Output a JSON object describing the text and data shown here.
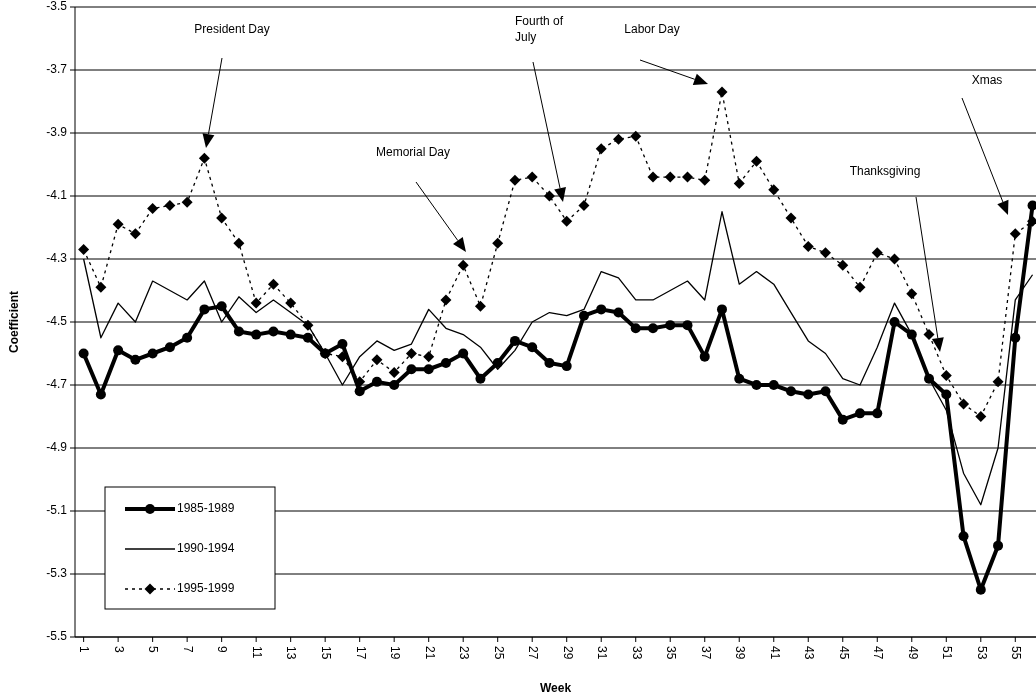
{
  "chart_data": {
    "type": "line",
    "xlabel": "Week",
    "ylabel": "Coefficient",
    "x": [
      1,
      2,
      3,
      4,
      5,
      6,
      7,
      8,
      9,
      10,
      11,
      12,
      13,
      14,
      15,
      16,
      17,
      18,
      19,
      20,
      21,
      22,
      23,
      24,
      25,
      26,
      27,
      28,
      29,
      30,
      31,
      32,
      33,
      34,
      35,
      36,
      37,
      38,
      39,
      40,
      41,
      42,
      43,
      44,
      45,
      46,
      47,
      48,
      49,
      50,
      51,
      52,
      53,
      54,
      55,
      56
    ],
    "xlim": [
      0.5,
      56.2
    ],
    "xticks": [
      1,
      3,
      5,
      7,
      9,
      11,
      13,
      15,
      17,
      19,
      21,
      23,
      25,
      27,
      29,
      31,
      33,
      35,
      37,
      39,
      41,
      43,
      45,
      47,
      49,
      51,
      53,
      55
    ],
    "ylim": [
      -5.5,
      -3.5
    ],
    "yticks": [
      -5.5,
      -5.3,
      -5.1,
      -4.9,
      -4.7,
      -4.5,
      -4.3,
      -4.1,
      -3.9,
      -3.7,
      -3.5
    ],
    "grid": "y",
    "legend": "bottom left",
    "series": [
      {
        "name": "1985-1989",
        "color": "#000000",
        "marker": "circle",
        "line_style": "solid",
        "values": [
          -4.6,
          -4.73,
          -4.59,
          -4.62,
          -4.6,
          -4.58,
          -4.55,
          -4.46,
          -4.45,
          -4.53,
          -4.54,
          -4.53,
          -4.54,
          -4.55,
          -4.6,
          -4.57,
          -4.72,
          -4.69,
          -4.7,
          -4.65,
          -4.65,
          -4.63,
          -4.6,
          -4.68,
          -4.63,
          -4.56,
          -4.58,
          -4.63,
          -4.64,
          -4.48,
          -4.46,
          -4.47,
          -4.52,
          -4.52,
          -4.51,
          -4.51,
          -4.61,
          -4.46,
          -4.68,
          -4.7,
          -4.7,
          -4.72,
          -4.73,
          -4.72,
          -4.81,
          -4.79,
          -4.79,
          -4.5,
          -4.54,
          -4.68,
          -4.73,
          -5.18,
          -5.35,
          -5.21,
          -4.55,
          -4.13
        ]
      },
      {
        "name": "1990-1994",
        "color": "#000000",
        "marker": "none",
        "line_style": "solid",
        "values": [
          -4.3,
          -4.55,
          -4.44,
          -4.5,
          -4.37,
          -4.4,
          -4.43,
          -4.37,
          -4.5,
          -4.42,
          -4.47,
          -4.43,
          -4.47,
          -4.51,
          -4.6,
          -4.7,
          -4.61,
          -4.56,
          -4.59,
          -4.57,
          -4.46,
          -4.52,
          -4.54,
          -4.58,
          -4.65,
          -4.59,
          -4.5,
          -4.47,
          -4.48,
          -4.46,
          -4.34,
          -4.36,
          -4.43,
          -4.43,
          -4.4,
          -4.37,
          -4.43,
          -4.15,
          -4.38,
          -4.34,
          -4.38,
          -4.47,
          -4.56,
          -4.6,
          -4.68,
          -4.7,
          -4.58,
          -4.44,
          -4.54,
          -4.68,
          -4.78,
          -4.98,
          -5.08,
          -4.9,
          -4.43,
          -4.35
        ]
      },
      {
        "name": "1995-1999",
        "color": "#000000",
        "marker": "diamond",
        "line_style": "dotted",
        "values": [
          -4.27,
          -4.39,
          -4.19,
          -4.22,
          -4.14,
          -4.13,
          -4.12,
          -3.98,
          -4.17,
          -4.25,
          -4.44,
          -4.38,
          -4.44,
          -4.51,
          -4.6,
          -4.61,
          -4.69,
          -4.62,
          -4.66,
          -4.6,
          -4.61,
          -4.43,
          -4.32,
          -4.45,
          -4.25,
          -4.05,
          -4.04,
          -4.1,
          -4.18,
          -4.13,
          -3.95,
          -3.92,
          -3.91,
          -4.04,
          -4.04,
          -4.04,
          -4.05,
          -3.77,
          -4.06,
          -3.99,
          -4.08,
          -4.17,
          -4.26,
          -4.28,
          -4.32,
          -4.39,
          -4.28,
          -4.3,
          -4.41,
          -4.54,
          -4.67,
          -4.76,
          -4.8,
          -4.69,
          -4.22,
          -4.18
        ]
      }
    ],
    "annotations": [
      "President Day",
      "Memorial Day",
      "Fourth of\nJuly",
      "Labor Day",
      "Thanksgiving",
      "Xmas"
    ]
  }
}
